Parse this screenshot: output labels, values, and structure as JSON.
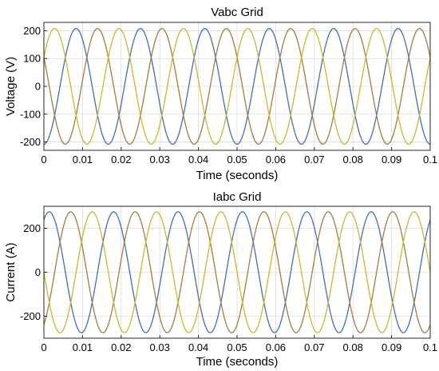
{
  "chart_data": [
    {
      "type": "line",
      "title": "Vabc Grid",
      "xlabel": "Time (seconds)",
      "ylabel": "Voltage (V)",
      "xlim": [
        0,
        0.1
      ],
      "ylim": [
        -230,
        230
      ],
      "xticks": [
        0,
        0.01,
        0.02,
        0.03,
        0.04,
        0.05,
        0.06,
        0.07,
        0.08,
        0.09,
        0.1
      ],
      "xtick_labels": [
        "0",
        "0.01",
        "0.02",
        "0.03",
        "0.04",
        "0.05",
        "0.06",
        "0.07",
        "0.08",
        "0.09",
        "0.1"
      ],
      "yticks": [
        -200,
        -100,
        0,
        100,
        200
      ],
      "ytick_labels": [
        "-200",
        "-100",
        "0",
        "100",
        "200"
      ],
      "grid": true,
      "series": [
        {
          "amplitude": 208,
          "frequency_hz": 60,
          "phase_deg": -90,
          "color": "#3f6fbf"
        },
        {
          "amplitude": 208,
          "frequency_hz": 60,
          "phase_deg": 150,
          "color": "#a87a3e"
        },
        {
          "amplitude": 208,
          "frequency_hz": 60,
          "phase_deg": 30,
          "color": "#c9b92c"
        }
      ]
    },
    {
      "type": "line",
      "title": "Iabc Grid",
      "xlabel": "Time (seconds)",
      "ylabel": "Current (A)",
      "xlim": [
        0,
        0.1
      ],
      "ylim": [
        -300,
        300
      ],
      "xticks": [
        0,
        0.01,
        0.02,
        0.03,
        0.04,
        0.05,
        0.06,
        0.07,
        0.08,
        0.09,
        0.1
      ],
      "xtick_labels": [
        "0",
        "0.01",
        "0.02",
        "0.03",
        "0.04",
        "0.05",
        "0.06",
        "0.07",
        "0.08",
        "0.09",
        "0.1"
      ],
      "yticks": [
        -200,
        0,
        200
      ],
      "ytick_labels": [
        "-200",
        "0",
        "200"
      ],
      "grid": true,
      "series": [
        {
          "amplitude": 275,
          "frequency_hz": 60,
          "phase_deg": 60,
          "color": "#3f6fbf"
        },
        {
          "amplitude": 275,
          "frequency_hz": 60,
          "phase_deg": -60,
          "color": "#a87a3e"
        },
        {
          "amplitude": 275,
          "frequency_hz": 60,
          "phase_deg": 180,
          "color": "#c9b92c"
        }
      ]
    }
  ]
}
